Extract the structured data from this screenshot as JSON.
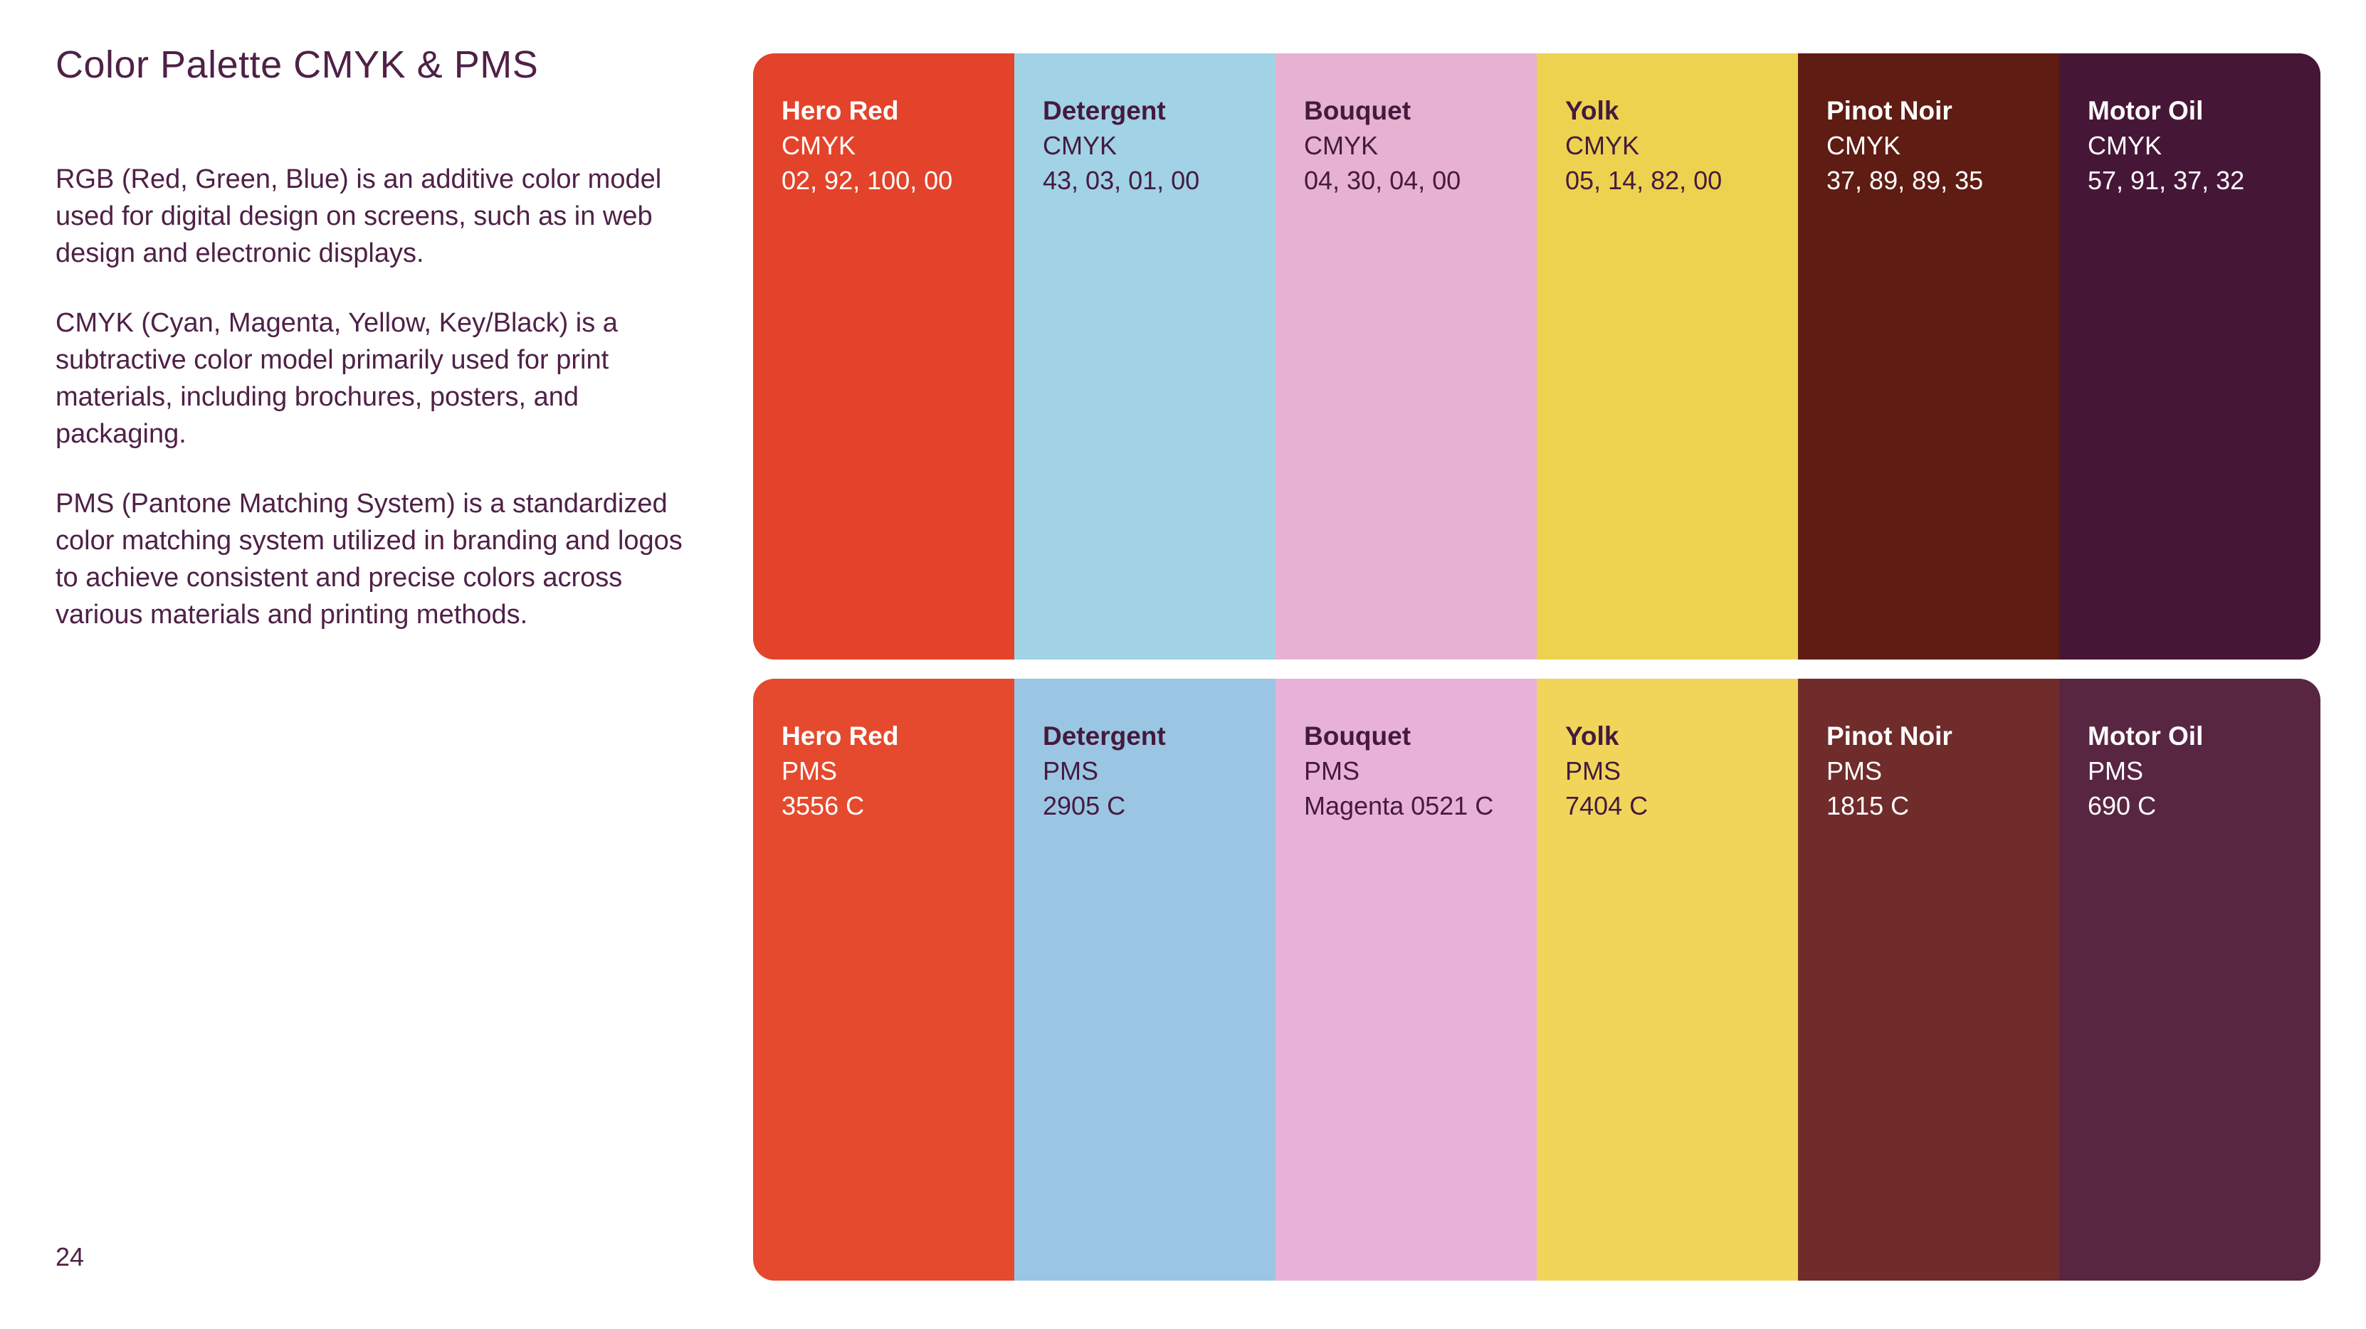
{
  "page": {
    "title": "Color Palette CMYK & PMS",
    "page_number": "24",
    "background_color": "#FFFFFF",
    "text_color": "#4F2147"
  },
  "paragraphs": {
    "rgb": "RGB (Red, Green, Blue) is an additive color model used for digital design on screens, such as in web design and electronic displays.",
    "cmyk": "CMYK (Cyan, Magenta, Yellow, Key/Black) is a subtractive color model primarily used for print materials, including brochures, posters, and packaging.",
    "pms": "PMS (Pantone Matching System) is a standardized color matching system utilized in branding and logos to achieve consistent and precise colors across various materials and printing methods."
  },
  "palette": {
    "cmyk_row": {
      "swatches": [
        {
          "name": "Hero Red",
          "system": "CMYK",
          "value": "02, 92, 100, 00",
          "color": "#E3432A",
          "text": "light"
        },
        {
          "name": "Detergent",
          "system": "CMYK",
          "value": "43, 03, 01, 00",
          "color": "#A1D2E6",
          "text": "dark"
        },
        {
          "name": "Bouquet",
          "system": "CMYK",
          "value": "04, 30, 04, 00",
          "color": "#E7B2D1",
          "text": "dark"
        },
        {
          "name": "Yolk",
          "system": "CMYK",
          "value": "05, 14, 82, 00",
          "color": "#EDD24F",
          "text": "dark"
        },
        {
          "name": "Pinot Noir",
          "system": "CMYK",
          "value": "37, 89, 89, 35",
          "color": "#5E1C13",
          "text": "light"
        },
        {
          "name": "Motor Oil",
          "system": "CMYK",
          "value": "57, 91, 37, 32",
          "color": "#461637",
          "text": "light"
        }
      ]
    },
    "pms_row": {
      "swatches": [
        {
          "name": "Hero Red",
          "system": "PMS",
          "value": "3556 C",
          "color": "#E54A2E",
          "text": "light"
        },
        {
          "name": "Detergent",
          "system": "PMS",
          "value": "2905 C",
          "color": "#9AC6E4",
          "text": "dark"
        },
        {
          "name": "Bouquet",
          "system": "PMS",
          "value": "Magenta 0521 C",
          "color": "#E8B2D8",
          "text": "dark"
        },
        {
          "name": "Yolk",
          "system": "PMS",
          "value": "7404 C",
          "color": "#F0D55A",
          "text": "dark"
        },
        {
          "name": "Pinot Noir",
          "system": "PMS",
          "value": "1815 C",
          "color": "#6F2C2B",
          "text": "light"
        },
        {
          "name": "Motor Oil",
          "system": "PMS",
          "value": "690 C",
          "color": "#592642",
          "text": "light"
        }
      ]
    }
  }
}
